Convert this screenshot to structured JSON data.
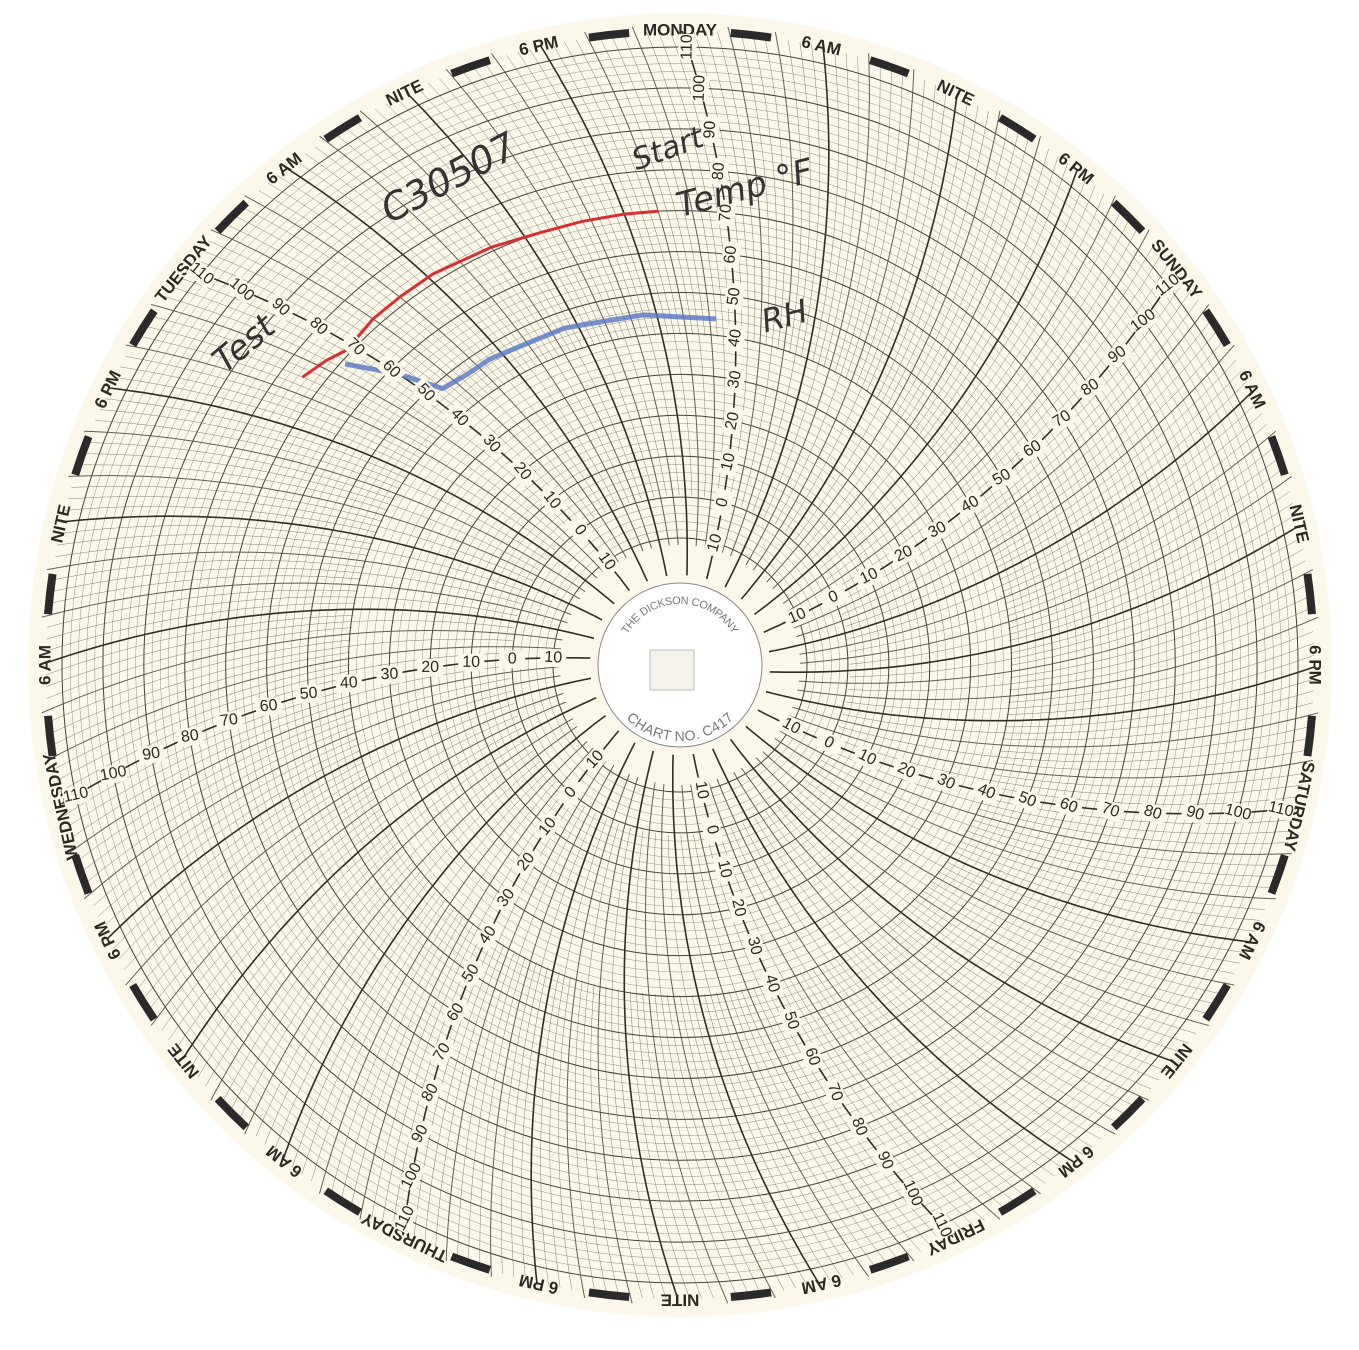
{
  "chart_data": {
    "type": "circular",
    "company": "THE DICKSON COMPANY",
    "chart_no": "CHART NO. C417",
    "annotations": [
      "C30507",
      "Start",
      "Test"
    ],
    "xlim": [
      0,
      168
    ],
    "xticks": [
      {
        "value": 0,
        "label": "MONDAY"
      },
      {
        "value": 6,
        "label": "6 PM"
      },
      {
        "value": 12,
        "label": "NITE"
      },
      {
        "value": 18,
        "label": "6 AM"
      },
      {
        "value": 24,
        "label": "TUESDAY"
      },
      {
        "value": 30,
        "label": "6 PM"
      },
      {
        "value": 36,
        "label": "NITE"
      },
      {
        "value": 42,
        "label": "6 AM"
      },
      {
        "value": 48,
        "label": "WEDNESDAY"
      },
      {
        "value": 54,
        "label": "6 PM"
      },
      {
        "value": 60,
        "label": "NITE"
      },
      {
        "value": 66,
        "label": "6 AM"
      },
      {
        "value": 72,
        "label": "THURSDAY"
      },
      {
        "value": 78,
        "label": "6 PM"
      },
      {
        "value": 84,
        "label": "NITE"
      },
      {
        "value": 90,
        "label": "6 AM"
      },
      {
        "value": 96,
        "label": "FRIDAY"
      },
      {
        "value": 102,
        "label": "6 PM"
      },
      {
        "value": 108,
        "label": "NITE"
      },
      {
        "value": 114,
        "label": "6 AM"
      },
      {
        "value": 120,
        "label": "SATURDAY"
      },
      {
        "value": 126,
        "label": "6 PM"
      },
      {
        "value": 132,
        "label": "NITE"
      },
      {
        "value": 138,
        "label": "6 AM"
      },
      {
        "value": 144,
        "label": "SUNDAY"
      },
      {
        "value": 150,
        "label": "6 PM"
      },
      {
        "value": 156,
        "label": "NITE"
      },
      {
        "value": 162,
        "label": "6 AM"
      }
    ],
    "ylim": [
      -10,
      110
    ],
    "yticks": [
      {
        "value": -10,
        "label": "10"
      },
      0,
      10,
      20,
      30,
      40,
      50,
      60,
      70,
      80,
      90,
      100,
      110
    ],
    "series": [
      {
        "name": "Temp °F",
        "color": "#d63030",
        "x": [
          4,
          6,
          8.5,
          11,
          14,
          17.7,
          20,
          22,
          24.4,
          25.5,
          27
        ],
        "values": [
          70,
          70,
          70,
          70,
          71,
          72,
          72,
          72,
          71,
          73,
          75
        ]
      },
      {
        "name": "RH",
        "color": "#5577c4",
        "x": [
          1.5,
          4,
          7,
          10,
          13,
          16,
          19,
          21,
          23,
          24,
          25.2
        ],
        "values": [
          44,
          44,
          45,
          45,
          46,
          46,
          47,
          47,
          48,
          58,
          69
        ]
      }
    ]
  }
}
